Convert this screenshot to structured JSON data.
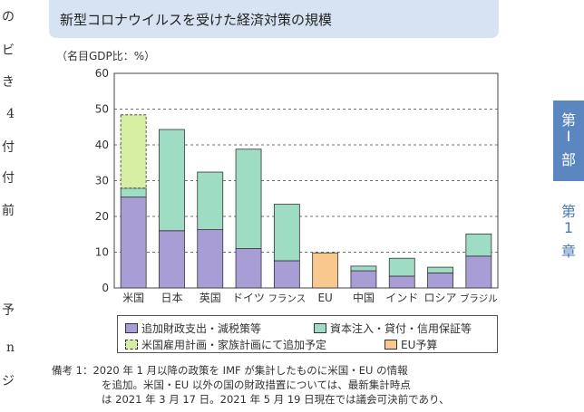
{
  "figure_title": "新型コロナウイルスを受けた経済対策の規模",
  "unit_label": "（名目GDP比：%）",
  "left_margin_chars": [
    "の",
    "ビ",
    "き",
    "4",
    "付",
    "付",
    "前",
    "予",
    "n",
    "ジ"
  ],
  "side_tab": {
    "part": [
      "第",
      "Ⅰ",
      "部"
    ],
    "chapter": [
      "第",
      "1",
      "章"
    ]
  },
  "colors": {
    "additional_fiscal": "#a99dd6",
    "capital_injection": "#9fdcc4",
    "us_employment_plan": "#d6eea2",
    "eu_budget": "#f8c88f",
    "title_bg": "#d7e3f2",
    "side_tab": "#5b86c0"
  },
  "legend": [
    {
      "label": "追加財政支出・減税策等",
      "color_key": "additional_fiscal",
      "dashed": false
    },
    {
      "label": "資本注入・貸付・信用保証等",
      "color_key": "capital_injection",
      "dashed": false
    },
    {
      "label": "米国雇用計画・家族計画にて追加予定",
      "color_key": "us_employment_plan",
      "dashed": true
    },
    {
      "label": "EU予算",
      "color_key": "eu_budget",
      "dashed": false
    }
  ],
  "notes": [
    "備考 1：2020 年 1 月以降の政策を IMF が集計したものに米国・EU の情報",
    "を追加。米国・EU 以外の国の財政措置については、最新集計時点",
    "は 2021 年 3 月 17 日。2021 年 5 月 19 日現在では議会可決前であり、"
  ],
  "chart_data": {
    "type": "bar",
    "stacked": true,
    "categories": [
      "米国",
      "日本",
      "英国",
      "ドイツ",
      "フランス",
      "EU",
      "中国",
      "インド",
      "ロシア",
      "ブラジル"
    ],
    "series": [
      {
        "name": "追加財政支出・減税策等",
        "color_key": "additional_fiscal",
        "values": [
          25.4,
          16.0,
          16.3,
          11.0,
          7.6,
          0,
          4.8,
          3.3,
          4.2,
          8.9
        ]
      },
      {
        "name": "資本注入・貸付・信用保証等",
        "color_key": "capital_injection",
        "values": [
          2.5,
          28.3,
          16.1,
          27.8,
          15.8,
          0,
          1.3,
          5.0,
          1.6,
          6.2
        ]
      },
      {
        "name": "米国雇用計画・家族計画にて追加予定",
        "color_key": "us_employment_plan",
        "values": [
          20.5,
          0,
          0,
          0,
          0,
          0,
          0,
          0,
          0,
          0
        ]
      },
      {
        "name": "EU予算",
        "color_key": "eu_budget",
        "values": [
          0,
          0,
          0,
          0,
          0,
          9.8,
          0,
          0,
          0,
          0
        ]
      }
    ],
    "ylim": [
      0,
      60
    ],
    "yticks": [
      0,
      10,
      20,
      30,
      40,
      50,
      60
    ],
    "grid": "dashed horizontal",
    "ylabel": "（名目GDP比：%）",
    "legend_position": "bottom"
  }
}
